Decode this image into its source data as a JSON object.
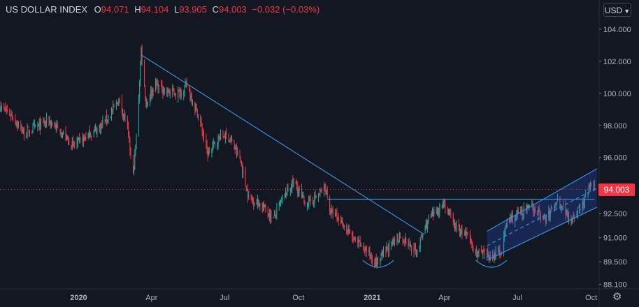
{
  "symbol": {
    "title": "US DOLLAR INDEX",
    "open_key": "O",
    "open": "94.071",
    "high_key": "H",
    "high": "94.104",
    "low_key": "L",
    "low": "93.905",
    "close_key": "C",
    "close": "94.003",
    "change": "−0.032 (−0.03%)"
  },
  "currency": {
    "label": "USD",
    "icon": "chevron-down-icon"
  },
  "last_price": "94.003",
  "settings_icon": "gear-icon",
  "colors": {
    "background": "#131722",
    "up": "#26a69a",
    "down": "#f23645",
    "line": "#2962ff",
    "drawing": "#3a8fd8",
    "text": "#b2b5be"
  },
  "chart_data": {
    "type": "candlestick",
    "title": "US DOLLAR INDEX",
    "y_ticks": [
      "104.000",
      "102.000",
      "100.000",
      "98.000",
      "96.000",
      "94.000",
      "92.500",
      "91.000",
      "89.500",
      "88.100"
    ],
    "x_ticks": [
      "2020",
      "Apr",
      "Jul",
      "Oct",
      "2021",
      "Apr",
      "Jul",
      "Oct"
    ],
    "ylim": [
      87.9,
      104.6
    ],
    "xlim": [
      "2019-09-25",
      "2021-10-10"
    ],
    "x_tick_dates": [
      "2020-01-01",
      "2020-04-01",
      "2020-07-01",
      "2020-10-01",
      "2021-01-01",
      "2021-04-01",
      "2021-07-01",
      "2021-10-01"
    ],
    "last_close": 94.003,
    "grid": false,
    "price_path": [
      [
        "2019-09-25",
        99.2
      ],
      [
        "2019-10-10",
        98.6
      ],
      [
        "2019-10-25",
        97.5
      ],
      [
        "2019-11-10",
        97.9
      ],
      [
        "2019-11-25",
        98.3
      ],
      [
        "2019-12-10",
        97.6
      ],
      [
        "2019-12-25",
        96.7
      ],
      [
        "2020-01-10",
        97.3
      ],
      [
        "2020-01-25",
        97.8
      ],
      [
        "2020-02-10",
        98.7
      ],
      [
        "2020-02-20",
        99.6
      ],
      [
        "2020-03-01",
        98.1
      ],
      [
        "2020-03-09",
        94.9
      ],
      [
        "2020-03-14",
        97.8
      ],
      [
        "2020-03-19",
        102.8
      ],
      [
        "2020-03-25",
        99.3
      ],
      [
        "2020-04-05",
        100.6
      ],
      [
        "2020-04-20",
        100.1
      ],
      [
        "2020-05-05",
        100.0
      ],
      [
        "2020-05-15",
        100.5
      ],
      [
        "2020-05-30",
        98.5
      ],
      [
        "2020-06-10",
        96.2
      ],
      [
        "2020-06-25",
        97.3
      ],
      [
        "2020-07-05",
        97.4
      ],
      [
        "2020-07-20",
        95.9
      ],
      [
        "2020-07-31",
        93.5
      ],
      [
        "2020-08-15",
        93.1
      ],
      [
        "2020-08-31",
        92.2
      ],
      [
        "2020-09-10",
        93.3
      ],
      [
        "2020-09-25",
        94.5
      ],
      [
        "2020-10-10",
        93.1
      ],
      [
        "2020-10-25",
        93.6
      ],
      [
        "2020-11-04",
        94.1
      ],
      [
        "2020-11-10",
        92.6
      ],
      [
        "2020-11-25",
        91.9
      ],
      [
        "2020-12-10",
        90.8
      ],
      [
        "2020-12-25",
        90.2
      ],
      [
        "2021-01-06",
        89.4
      ],
      [
        "2021-01-20",
        90.3
      ],
      [
        "2021-02-05",
        91.1
      ],
      [
        "2021-02-25",
        90.1
      ],
      [
        "2021-03-10",
        91.9
      ],
      [
        "2021-03-31",
        93.2
      ],
      [
        "2021-04-15",
        91.6
      ],
      [
        "2021-04-30",
        91.1
      ],
      [
        "2021-05-10",
        90.1
      ],
      [
        "2021-05-25",
        89.8
      ],
      [
        "2021-06-10",
        90.1
      ],
      [
        "2021-06-18",
        92.0
      ],
      [
        "2021-07-05",
        92.6
      ],
      [
        "2021-07-20",
        92.9
      ],
      [
        "2021-08-05",
        92.1
      ],
      [
        "2021-08-20",
        93.4
      ],
      [
        "2021-09-05",
        92.2
      ],
      [
        "2021-09-20",
        93.0
      ],
      [
        "2021-09-30",
        94.3
      ],
      [
        "2021-10-05",
        94.0
      ]
    ],
    "drawings": {
      "trendline": {
        "from": [
          "2020-03-19",
          102.4
        ],
        "to": [
          "2021-03-07",
          91.2
        ]
      },
      "horizontal": {
        "from": [
          "2020-11-06",
          93.4
        ],
        "to": [
          "2021-10-05",
          93.4
        ]
      },
      "channel": {
        "lower": {
          "from": [
            "2021-05-24",
            89.6
          ],
          "to": [
            "2021-10-08",
            92.9
          ]
        },
        "upper": {
          "from": [
            "2021-05-24",
            91.4
          ],
          "to": [
            "2021-10-08",
            95.3
          ]
        }
      },
      "arcs": [
        {
          "from": "2020-12-20",
          "to": "2021-01-28",
          "price": 89.6
        },
        {
          "from": "2021-05-10",
          "to": "2021-06-18",
          "price": 89.6
        }
      ]
    }
  }
}
